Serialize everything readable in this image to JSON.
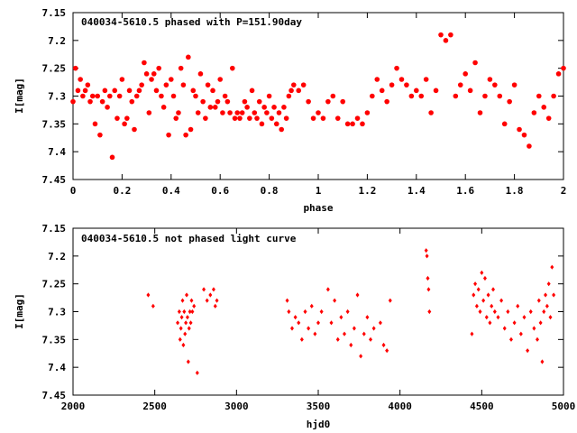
{
  "chart_data": [
    {
      "type": "scatter",
      "title": "040034-5610.5 phased with P=151.90day",
      "xlabel": "phase",
      "ylabel": "I[mag]",
      "xlim": [
        0,
        2
      ],
      "ylim": [
        7.45,
        7.15
      ],
      "y_inverted": true,
      "xticks": [
        0,
        0.2,
        0.4,
        0.6,
        0.8,
        1,
        1.2,
        1.4,
        1.6,
        1.8,
        2
      ],
      "yticks": [
        7.15,
        7.2,
        7.25,
        7.3,
        7.35,
        7.4,
        7.45
      ],
      "grid": false,
      "marker": "filled-dot",
      "color": "#ff0000",
      "series": [
        {
          "x": [
            0.0,
            0.01,
            0.02,
            0.03,
            0.04,
            0.05,
            0.06,
            0.07,
            0.08,
            0.09,
            0.1,
            0.11,
            0.12,
            0.13,
            0.14,
            0.15,
            0.16,
            0.17,
            0.18,
            0.19,
            0.2,
            0.21,
            0.22,
            0.23,
            0.24,
            0.25,
            0.26,
            0.27,
            0.28,
            0.29,
            0.3,
            0.31,
            0.32,
            0.33,
            0.34,
            0.35,
            0.36,
            0.37,
            0.38,
            0.39,
            0.4,
            0.41,
            0.42,
            0.43,
            0.44,
            0.45,
            0.46,
            0.47,
            0.48,
            0.49,
            0.5,
            0.51,
            0.52,
            0.53,
            0.54,
            0.55,
            0.56,
            0.57,
            0.58,
            0.59,
            0.6,
            0.61,
            0.62,
            0.63,
            0.64,
            0.65,
            0.66,
            0.67,
            0.68,
            0.69,
            0.7,
            0.71,
            0.72,
            0.73,
            0.74,
            0.75,
            0.76,
            0.77,
            0.78,
            0.79,
            0.8,
            0.81,
            0.82,
            0.83,
            0.84,
            0.85,
            0.86,
            0.87,
            0.88,
            0.89,
            0.9,
            0.92,
            0.94,
            0.96,
            0.98,
            1.0,
            1.02,
            1.04,
            1.06,
            1.08,
            1.1,
            1.12,
            1.14,
            1.16,
            1.18,
            1.2,
            1.22,
            1.24,
            1.26,
            1.28,
            1.3,
            1.32,
            1.34,
            1.36,
            1.38,
            1.4,
            1.42,
            1.44,
            1.46,
            1.48,
            1.5,
            1.52,
            1.54,
            1.56,
            1.58,
            1.6,
            1.62,
            1.64,
            1.66,
            1.68,
            1.7,
            1.72,
            1.74,
            1.76,
            1.78,
            1.8,
            1.82,
            1.84,
            1.86,
            1.88,
            1.9,
            1.92,
            1.94,
            1.96,
            1.98,
            2.0
          ],
          "y": [
            7.31,
            7.25,
            7.29,
            7.27,
            7.3,
            7.29,
            7.28,
            7.31,
            7.3,
            7.35,
            7.3,
            7.37,
            7.31,
            7.29,
            7.32,
            7.3,
            7.41,
            7.29,
            7.34,
            7.3,
            7.27,
            7.35,
            7.34,
            7.29,
            7.31,
            7.36,
            7.3,
            7.29,
            7.28,
            7.24,
            7.26,
            7.33,
            7.27,
            7.26,
            7.29,
            7.25,
            7.3,
            7.32,
            7.28,
            7.37,
            7.27,
            7.3,
            7.34,
            7.33,
            7.25,
            7.28,
            7.37,
            7.23,
            7.36,
            7.29,
            7.3,
            7.33,
            7.26,
            7.31,
            7.34,
            7.28,
            7.32,
            7.29,
            7.32,
            7.31,
            7.27,
            7.33,
            7.3,
            7.31,
            7.33,
            7.25,
            7.34,
            7.33,
            7.34,
            7.33,
            7.31,
            7.32,
            7.34,
            7.29,
            7.33,
            7.34,
            7.31,
            7.35,
            7.32,
            7.33,
            7.3,
            7.34,
            7.32,
            7.35,
            7.33,
            7.36,
            7.32,
            7.34,
            7.3,
            7.29,
            7.28,
            7.29,
            7.28,
            7.31,
            7.34,
            7.33,
            7.34,
            7.31,
            7.3,
            7.34,
            7.31,
            7.35,
            7.35,
            7.34,
            7.35,
            7.33,
            7.3,
            7.27,
            7.29,
            7.31,
            7.28,
            7.25,
            7.27,
            7.28,
            7.3,
            7.29,
            7.3,
            7.27,
            7.33,
            7.29,
            7.19,
            7.2,
            7.19,
            7.3,
            7.28,
            7.26,
            7.29,
            7.24,
            7.33,
            7.3,
            7.27,
            7.28,
            7.3,
            7.35,
            7.31,
            7.28,
            7.36,
            7.37,
            7.39,
            7.33,
            7.3,
            7.32,
            7.34,
            7.3,
            7.26,
            7.25
          ]
        }
      ]
    },
    {
      "type": "scatter",
      "title": "040034-5610.5 not phased light curve",
      "xlabel": "hjd0",
      "ylabel": "I[mag]",
      "xlim": [
        2000,
        5000
      ],
      "ylim": [
        7.45,
        7.15
      ],
      "y_inverted": true,
      "xticks": [
        2000,
        2500,
        3000,
        3500,
        4000,
        4500,
        5000
      ],
      "yticks": [
        7.15,
        7.2,
        7.25,
        7.3,
        7.35,
        7.4,
        7.45
      ],
      "grid": false,
      "marker": "small-diamond",
      "color": "#ff0000",
      "series": [
        {
          "x": [
            2460,
            2490,
            2640,
            2650,
            2655,
            2660,
            2665,
            2670,
            2675,
            2680,
            2685,
            2690,
            2695,
            2700,
            2705,
            2710,
            2715,
            2720,
            2725,
            2730,
            2740,
            2760,
            2800,
            2820,
            2840,
            2860,
            2870,
            2880,
            3310,
            3320,
            3340,
            3360,
            3380,
            3400,
            3420,
            3440,
            3460,
            3480,
            3500,
            3520,
            3560,
            3580,
            3600,
            3620,
            3640,
            3660,
            3680,
            3700,
            3720,
            3740,
            3760,
            3780,
            3800,
            3820,
            3840,
            3880,
            3900,
            3920,
            3940,
            4160,
            4165,
            4170,
            4175,
            4180,
            4440,
            4450,
            4460,
            4470,
            4480,
            4490,
            4500,
            4510,
            4520,
            4530,
            4540,
            4550,
            4560,
            4570,
            4580,
            4600,
            4620,
            4640,
            4660,
            4680,
            4700,
            4720,
            4740,
            4760,
            4780,
            4800,
            4820,
            4840,
            4850,
            4860,
            4870,
            4880,
            4890,
            4900,
            4910,
            4920,
            4930,
            4940
          ],
          "y": [
            7.27,
            7.29,
            7.32,
            7.3,
            7.35,
            7.33,
            7.31,
            7.28,
            7.36,
            7.3,
            7.34,
            7.32,
            7.27,
            7.31,
            7.39,
            7.33,
            7.3,
            7.32,
            7.28,
            7.3,
            7.29,
            7.41,
            7.26,
            7.28,
            7.27,
            7.26,
            7.29,
            7.28,
            7.28,
            7.3,
            7.33,
            7.31,
            7.32,
            7.35,
            7.3,
            7.33,
            7.29,
            7.34,
            7.32,
            7.3,
            7.26,
            7.32,
            7.28,
            7.35,
            7.31,
            7.34,
            7.3,
            7.36,
            7.33,
            7.27,
            7.38,
            7.34,
            7.31,
            7.35,
            7.33,
            7.32,
            7.36,
            7.37,
            7.28,
            7.19,
            7.2,
            7.24,
            7.26,
            7.3,
            7.34,
            7.27,
            7.25,
            7.29,
            7.26,
            7.3,
            7.23,
            7.28,
            7.24,
            7.31,
            7.27,
            7.32,
            7.29,
            7.26,
            7.3,
            7.31,
            7.28,
            7.33,
            7.3,
            7.35,
            7.32,
            7.29,
            7.34,
            7.31,
            7.37,
            7.3,
            7.33,
            7.35,
            7.28,
            7.32,
            7.39,
            7.3,
            7.27,
            7.29,
            7.25,
            7.31,
            7.22,
            7.27
          ]
        }
      ]
    }
  ]
}
